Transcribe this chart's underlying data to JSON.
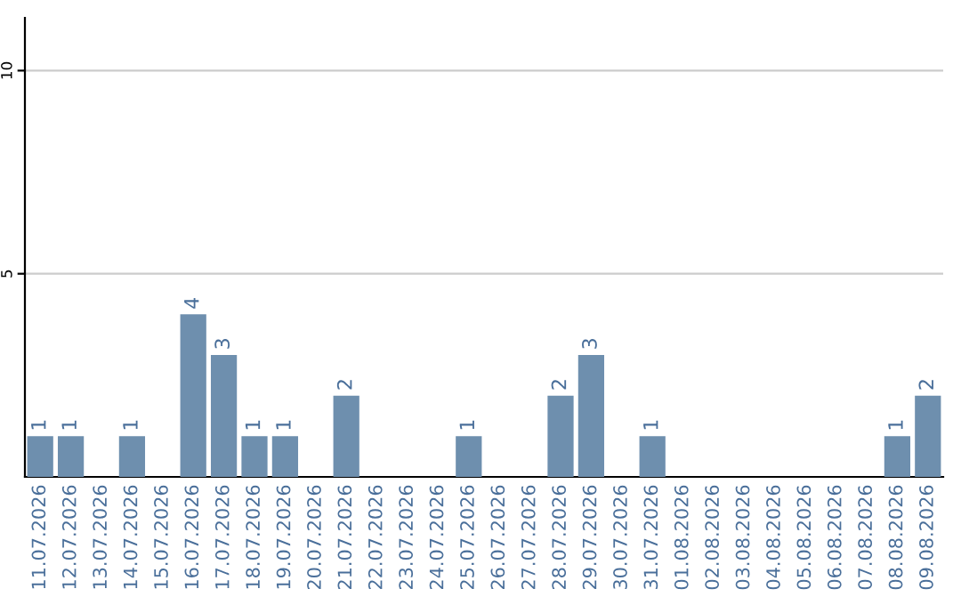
{
  "chart_data": {
    "type": "bar",
    "categories": [
      "11.07.2026",
      "12.07.2026",
      "13.07.2026",
      "14.07.2026",
      "15.07.2026",
      "16.07.2026",
      "17.07.2026",
      "18.07.2026",
      "19.07.2026",
      "20.07.2026",
      "21.07.2026",
      "22.07.2026",
      "23.07.2026",
      "24.07.2026",
      "25.07.2026",
      "26.07.2026",
      "27.07.2026",
      "28.07.2026",
      "29.07.2026",
      "30.07.2026",
      "31.07.2026",
      "01.08.2026",
      "02.08.2026",
      "03.08.2026",
      "04.08.2026",
      "05.08.2026",
      "06.08.2026",
      "07.08.2026",
      "08.08.2026",
      "09.08.2026"
    ],
    "values": [
      1,
      1,
      0,
      1,
      0,
      4,
      3,
      1,
      1,
      0,
      2,
      0,
      0,
      0,
      1,
      0,
      0,
      2,
      3,
      0,
      1,
      0,
      0,
      0,
      0,
      0,
      0,
      0,
      1,
      2
    ],
    "value_labels": [
      "1",
      "1",
      null,
      "1",
      null,
      "4",
      "3",
      "1",
      "1",
      null,
      "2",
      null,
      null,
      null,
      "1",
      null,
      null,
      "2",
      "3",
      null,
      "1",
      null,
      null,
      null,
      null,
      null,
      null,
      null,
      "1",
      "2"
    ],
    "color": "#6e8fae",
    "ylim": [
      0,
      11.3
    ],
    "yticks": [
      5,
      10
    ],
    "grid": "y"
  }
}
